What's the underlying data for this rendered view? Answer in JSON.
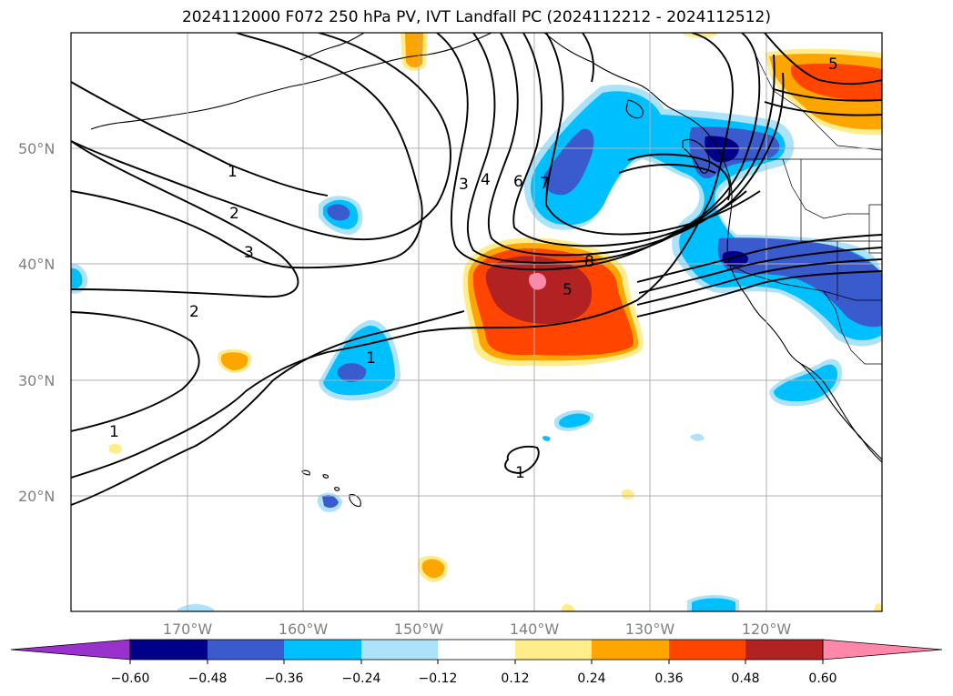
{
  "title": "2024112000 F072 250 hPa PV, IVT Landfall PC (2024112212 - 2024112512)",
  "map": {
    "lat_labels": [
      "50°N",
      "40°N",
      "30°N",
      "20°N"
    ],
    "lon_labels": [
      "170°W",
      "160°W",
      "150°W",
      "140°W",
      "130°W",
      "120°W"
    ],
    "contour_labels": [
      "1",
      "2",
      "3",
      "2",
      "1",
      "1",
      "3",
      "4",
      "6",
      "7",
      "8",
      "5",
      "5",
      "1"
    ]
  },
  "colorbar": {
    "ticks": [
      "−0.60",
      "−0.48",
      "−0.36",
      "−0.24",
      "−0.12",
      "0.12",
      "0.24",
      "0.36",
      "0.48",
      "0.60"
    ],
    "colors": [
      "#9932cc",
      "#00008b",
      "#3a5bcd",
      "#00bfff",
      "#ade3fa",
      "#ffffff",
      "#ffec8b",
      "#ffa500",
      "#ff4500",
      "#b22222",
      "#ff88aa"
    ]
  }
}
